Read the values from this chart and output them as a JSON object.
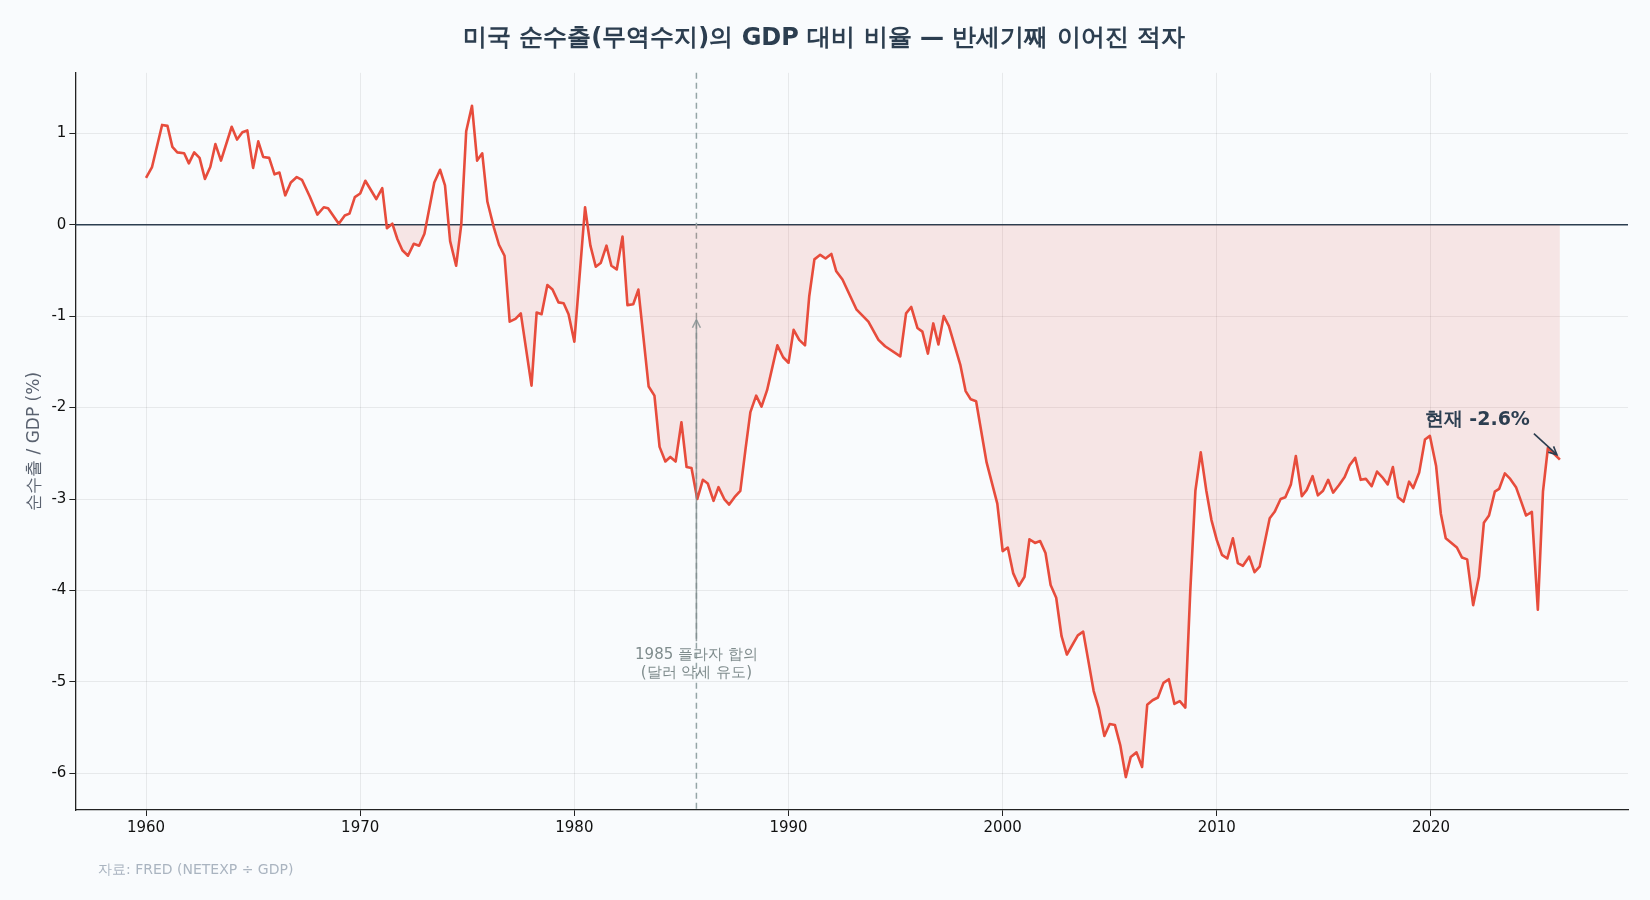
{
  "chart_data": {
    "type": "area",
    "title": "미국 순수출(무역수지)의 GDP 대비 비율 — 반세기째 이어진 적자",
    "ylabel": "순수출 / GDP (%)",
    "x": [
      1960.0,
      1960.28,
      1960.75,
      1961.0,
      1961.23,
      1961.46,
      1961.78,
      1962.0,
      1962.25,
      1962.5,
      1962.75,
      1963.0,
      1963.24,
      1963.5,
      1964.0,
      1964.25,
      1964.5,
      1964.73,
      1965.0,
      1965.24,
      1965.47,
      1965.75,
      1966.0,
      1966.23,
      1966.5,
      1966.76,
      1967.04,
      1967.28,
      1967.64,
      1968.0,
      1968.3,
      1968.5,
      1969.0,
      1969.28,
      1969.5,
      1969.75,
      1970.0,
      1970.24,
      1970.75,
      1971.03,
      1971.25,
      1971.5,
      1971.74,
      1971.97,
      1972.23,
      1972.5,
      1972.75,
      1973.0,
      1973.46,
      1973.73,
      1973.96,
      1974.2,
      1974.48,
      1974.72,
      1974.95,
      1975.22,
      1975.46,
      1975.7,
      1975.94,
      1976.24,
      1976.48,
      1976.74,
      1976.98,
      1977.25,
      1977.5,
      1978.0,
      1978.24,
      1978.47,
      1978.74,
      1978.98,
      1979.26,
      1979.5,
      1979.73,
      1980.0,
      1980.5,
      1980.75,
      1981.0,
      1981.23,
      1981.5,
      1981.73,
      1981.98,
      1982.25,
      1982.48,
      1982.75,
      1982.99,
      1983.47,
      1983.74,
      1983.98,
      1984.25,
      1984.48,
      1984.73,
      1985.0,
      1985.24,
      1985.47,
      1985.74,
      1986.0,
      1986.23,
      1986.5,
      1986.73,
      1987.0,
      1987.23,
      1987.48,
      1987.75,
      1987.99,
      1988.22,
      1988.49,
      1988.74,
      1989.0,
      1989.48,
      1989.75,
      1990.0,
      1990.24,
      1990.5,
      1990.77,
      1990.97,
      1991.21,
      1991.48,
      1991.73,
      1992.0,
      1992.23,
      1992.52,
      1993.18,
      1993.73,
      1994.2,
      1994.51,
      1995.22,
      1995.49,
      1995.73,
      1996.02,
      1996.25,
      1996.51,
      1996.76,
      1997.0,
      1997.25,
      1997.49,
      1998.02,
      1998.27,
      1998.51,
      1998.76,
      1999.25,
      1999.75,
      2000.0,
      2000.24,
      2000.49,
      2000.76,
      2001.02,
      2001.25,
      2001.51,
      2001.75,
      2002.0,
      2002.24,
      2002.5,
      2002.75,
      2003.0,
      2003.51,
      2003.76,
      2004.25,
      2004.49,
      2004.75,
      2005.0,
      2005.24,
      2005.49,
      2005.75,
      2005.98,
      2006.25,
      2006.51,
      2006.75,
      2007.0,
      2007.25,
      2007.51,
      2007.76,
      2008.02,
      2008.27,
      2008.53,
      2008.76,
      2009.0,
      2009.25,
      2009.51,
      2009.75,
      2010.0,
      2010.24,
      2010.49,
      2010.75,
      2010.98,
      2011.22,
      2011.51,
      2011.76,
      2012.0,
      2012.47,
      2012.7,
      2012.98,
      2013.2,
      2013.46,
      2013.69,
      2013.97,
      2014.2,
      2014.47,
      2014.72,
      2014.96,
      2015.2,
      2015.43,
      2015.7,
      2015.97,
      2016.2,
      2016.46,
      2016.72,
      2016.96,
      2017.23,
      2017.48,
      2017.72,
      2017.98,
      2018.22,
      2018.46,
      2018.72,
      2018.98,
      2019.17,
      2019.45,
      2019.72,
      2019.95,
      2020.24,
      2020.46,
      2020.69,
      2021.21,
      2021.45,
      2021.69,
      2021.97,
      2022.24,
      2022.47,
      2022.71,
      2022.98,
      2023.18,
      2023.45,
      2023.7,
      2023.97,
      2024.2,
      2024.44,
      2024.71,
      2024.99,
      2025.23,
      2025.46,
      2026.02
    ],
    "values": [
      0.51,
      0.63,
      1.09,
      1.08,
      0.85,
      0.79,
      0.78,
      0.67,
      0.79,
      0.73,
      0.5,
      0.63,
      0.88,
      0.7,
      1.07,
      0.93,
      1.01,
      1.03,
      0.62,
      0.91,
      0.74,
      0.73,
      0.55,
      0.57,
      0.32,
      0.46,
      0.52,
      0.49,
      0.31,
      0.11,
      0.19,
      0.18,
      0.01,
      0.1,
      0.12,
      0.3,
      0.34,
      0.48,
      0.28,
      0.4,
      -0.04,
      0.01,
      -0.16,
      -0.28,
      -0.34,
      -0.21,
      -0.23,
      -0.1,
      0.46,
      0.6,
      0.43,
      -0.18,
      -0.45,
      0.0,
      1.02,
      1.3,
      0.7,
      0.78,
      0.25,
      -0.03,
      -0.22,
      -0.34,
      -1.06,
      -1.03,
      -0.97,
      -1.76,
      -0.96,
      -0.98,
      -0.66,
      -0.71,
      -0.85,
      -0.86,
      -0.98,
      -1.28,
      0.19,
      -0.23,
      -0.46,
      -0.42,
      -0.23,
      -0.45,
      -0.49,
      -0.13,
      -0.88,
      -0.87,
      -0.71,
      -1.77,
      -1.87,
      -2.43,
      -2.59,
      -2.54,
      -2.59,
      -2.16,
      -2.65,
      -2.66,
      -3.0,
      -2.79,
      -2.83,
      -3.02,
      -2.87,
      -3.0,
      -3.06,
      -2.98,
      -2.91,
      -2.46,
      -2.05,
      -1.87,
      -1.99,
      -1.81,
      -1.32,
      -1.45,
      -1.51,
      -1.15,
      -1.26,
      -1.32,
      -0.78,
      -0.38,
      -0.33,
      -0.37,
      -0.32,
      -0.51,
      -0.6,
      -0.93,
      -1.06,
      -1.26,
      -1.33,
      -1.44,
      -0.97,
      -0.9,
      -1.13,
      -1.17,
      -1.41,
      -1.08,
      -1.31,
      -1.0,
      -1.11,
      -1.53,
      -1.82,
      -1.91,
      -1.93,
      -2.6,
      -3.05,
      -3.57,
      -3.53,
      -3.81,
      -3.95,
      -3.85,
      -3.44,
      -3.48,
      -3.46,
      -3.59,
      -3.94,
      -4.08,
      -4.5,
      -4.7,
      -4.49,
      -4.45,
      -5.1,
      -5.29,
      -5.59,
      -5.46,
      -5.47,
      -5.69,
      -6.04,
      -5.82,
      -5.77,
      -5.93,
      -5.25,
      -5.2,
      -5.17,
      -5.01,
      -4.97,
      -5.24,
      -5.21,
      -5.28,
      -4.01,
      -2.91,
      -2.49,
      -2.91,
      -3.23,
      -3.45,
      -3.61,
      -3.65,
      -3.43,
      -3.7,
      -3.73,
      -3.63,
      -3.8,
      -3.74,
      -3.21,
      -3.14,
      -3.0,
      -2.98,
      -2.84,
      -2.53,
      -2.97,
      -2.9,
      -2.75,
      -2.96,
      -2.91,
      -2.79,
      -2.93,
      -2.85,
      -2.76,
      -2.63,
      -2.55,
      -2.79,
      -2.78,
      -2.86,
      -2.7,
      -2.76,
      -2.84,
      -2.65,
      -2.98,
      -3.03,
      -2.81,
      -2.88,
      -2.71,
      -2.35,
      -2.31,
      -2.64,
      -3.16,
      -3.43,
      -3.53,
      -3.64,
      -3.66,
      -4.16,
      -3.85,
      -3.26,
      -3.18,
      -2.92,
      -2.89,
      -2.72,
      -2.78,
      -2.87,
      -3.02,
      -3.18,
      -3.14,
      -4.21,
      -2.92,
      -2.44,
      -2.57
    ],
    "color": "#e74c3c",
    "xlim": [
      1956.7,
      2029.2
    ],
    "xticks": [
      1960,
      1970,
      1980,
      1990,
      2000,
      2010,
      2020
    ],
    "ylim": [
      -6.4,
      1.66
    ],
    "yticks": [
      -6,
      -5,
      -4,
      -3,
      -2,
      -1,
      0,
      1
    ],
    "grid": true,
    "legend": false,
    "ref_lines": [
      {
        "axis": "y",
        "value": 0,
        "color": "#2c3e50",
        "line_style": "solid"
      },
      {
        "axis": "x",
        "value": 1985.7,
        "label": "1985 플라자 합의\n(달러 약세 유도)",
        "color": "#95a5a6",
        "line_style": "dashed"
      }
    ],
    "annotations": [
      {
        "text": "현재 -2.6%",
        "x": 2026.02,
        "y": -2.57
      },
      "자료: FRED (NETEXP ÷ GDP)"
    ]
  }
}
